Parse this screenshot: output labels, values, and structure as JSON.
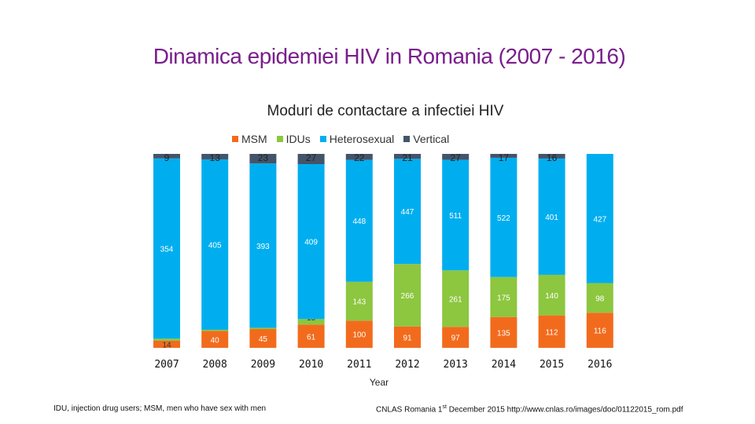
{
  "slide_title": "Dinamica epidemiei HIV in Romania (2007 - 2016)",
  "footnote_left": "IDU, injection drug users; MSM, men who have sex with men",
  "footnote_right": {
    "before": "CNLAS Romania 1",
    "sup": "st",
    "after": " December 2015 http://www.cnlas.ro/images/doc/01122015_rom.pdf"
  },
  "chart_data": {
    "type": "bar",
    "stacked": true,
    "percent": true,
    "title": "Moduri de contactare a infectiei HIV",
    "xlabel": "Year",
    "ylabel": "",
    "legend_position": "top",
    "categories": [
      "2007",
      "2008",
      "2009",
      "2010",
      "2011",
      "2012",
      "2013",
      "2014",
      "2015",
      "2016"
    ],
    "series": [
      {
        "name": "MSM",
        "color": "#f26b1d",
        "values": [
          14,
          40,
          45,
          61,
          100,
          91,
          97,
          135,
          112,
          116
        ]
      },
      {
        "name": "IDUs",
        "color": "#8dc63f",
        "values": [
          4,
          3,
          3,
          15,
          143,
          266,
          261,
          175,
          140,
          98
        ]
      },
      {
        "name": "Heterosexual",
        "color": "#00aeef",
        "values": [
          354,
          405,
          393,
          409,
          448,
          447,
          511,
          522,
          401,
          427
        ]
      },
      {
        "name": "Vertical",
        "color": "#44546a",
        "values": [
          9,
          13,
          23,
          27,
          22,
          21,
          27,
          17,
          16,
          null
        ]
      }
    ]
  }
}
